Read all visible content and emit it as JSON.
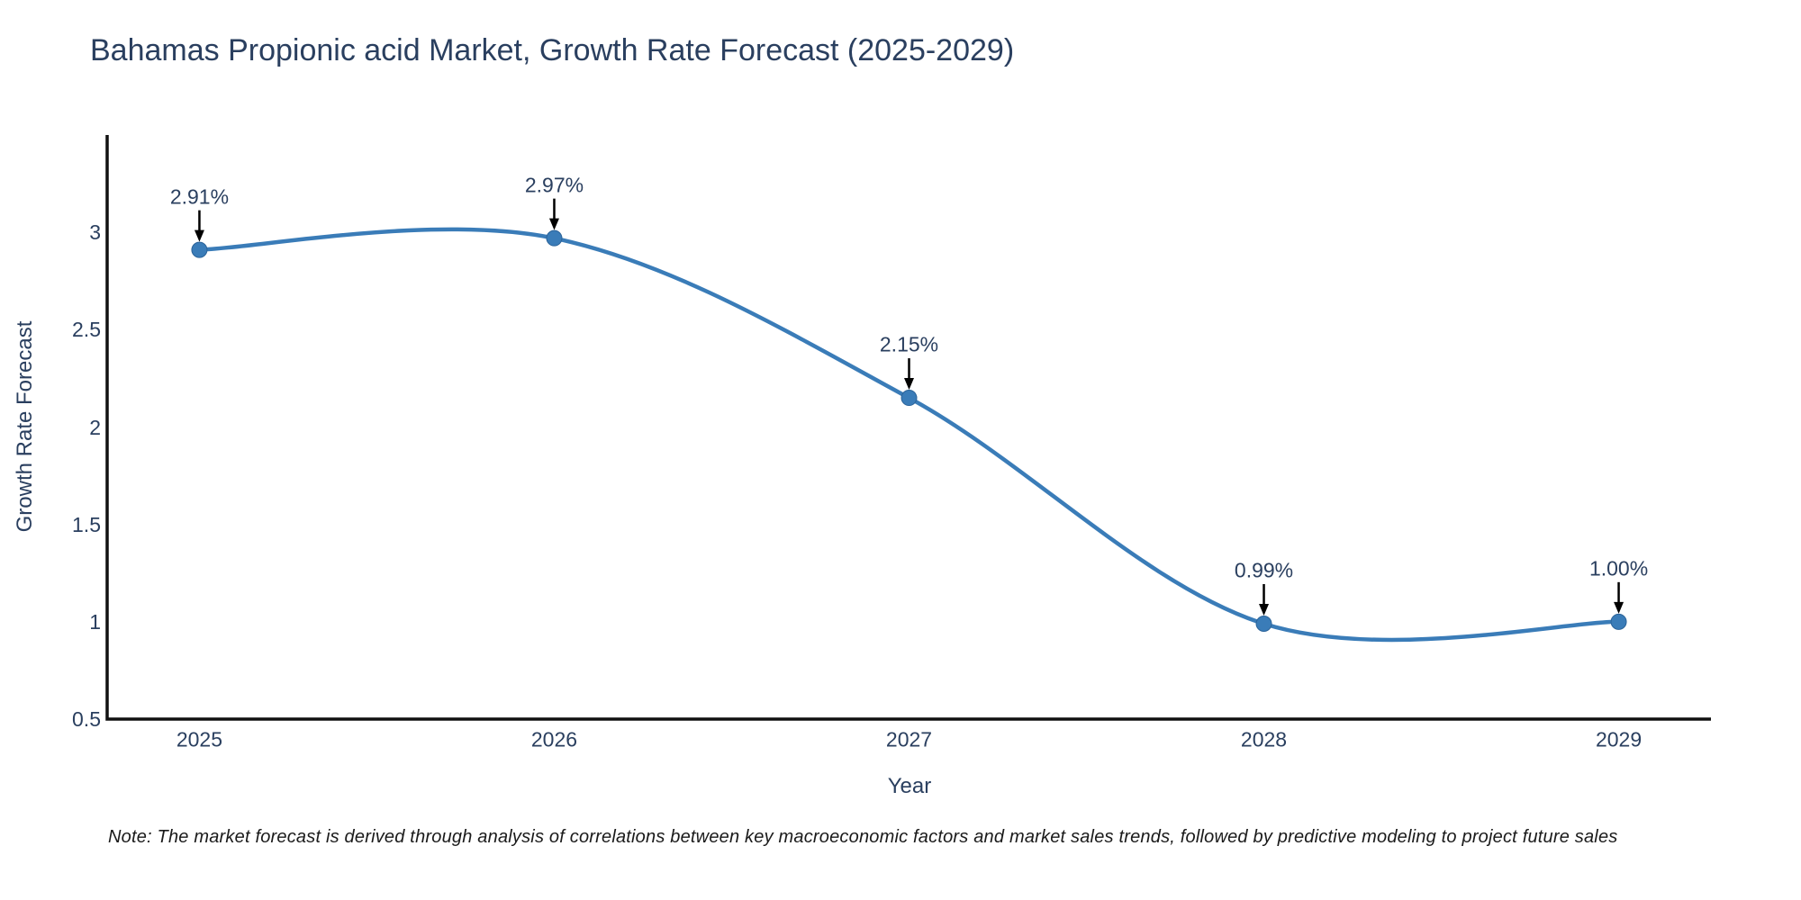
{
  "header": {
    "title": "Bahamas Propionic acid Market, Growth Rate Forecast (2025-2029)"
  },
  "chart_data": {
    "type": "line",
    "title": "Bahamas Propionic acid Market, Growth Rate Forecast (2025-2029)",
    "xlabel": "Year",
    "ylabel": "Growth Rate Forecast",
    "x": [
      2025,
      2026,
      2027,
      2028,
      2029
    ],
    "series": [
      {
        "name": "Growth Rate Forecast",
        "values": [
          2.91,
          2.97,
          2.15,
          0.99,
          1.0
        ],
        "labels": [
          "2.91%",
          "2.97%",
          "2.15%",
          "0.99%",
          "1.00%"
        ],
        "line_shape": "spline",
        "line_color": "#3a7cb8",
        "marker_color": "#3a7cb8",
        "marker_edge_color": "#2b6399"
      }
    ],
    "xticks": [
      "2025",
      "2026",
      "2027",
      "2028",
      "2029"
    ],
    "xtick_values": [
      2025,
      2026,
      2027,
      2028,
      2029
    ],
    "yticks": [
      "3",
      "2.5",
      "2",
      "1.5",
      "1",
      "0.5"
    ],
    "ytick_values": [
      3,
      2.5,
      2,
      1.5,
      1,
      0.5
    ],
    "xlim": [
      2024.74,
      2029.26
    ],
    "ylim": [
      0.5,
      3.5
    ],
    "grid": false,
    "legend": "none",
    "annotation_arrow_color": "#000000",
    "axis_line_color": "#111111",
    "text_color": "#2a3f5f"
  },
  "footer": {
    "note": "Note: The market forecast is derived through analysis of correlations between key macroeconomic factors and market sales trends, followed by predictive modeling to project future sales"
  }
}
